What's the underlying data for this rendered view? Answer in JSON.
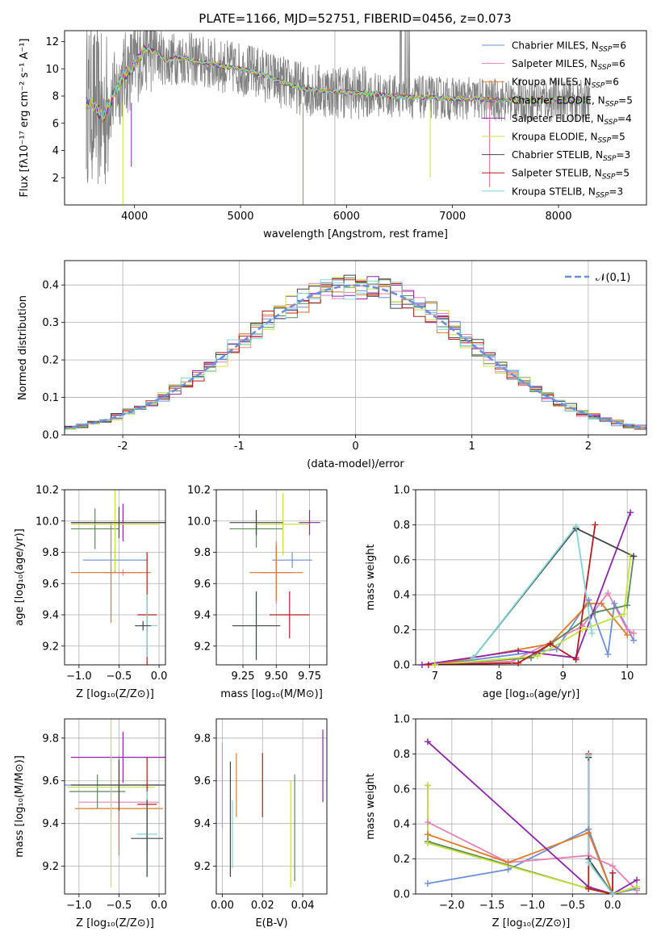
{
  "title": "PLATE=1166, MJD=52751, FIBERID=0456, z=0.073",
  "series_colors": [
    "#6a8fdc",
    "#e681b4",
    "#e07a25",
    "#5a8a5a",
    "#8e24aa",
    "#c8e23c",
    "#444444",
    "#b71c1c",
    "#7fd6d6"
  ],
  "chart_data": [
    {
      "type": "line",
      "id": "spectrum",
      "xlabel": "wavelength [Angstrom, rest frame]",
      "ylabel": "Flux [fλ10⁻¹⁷ erg cm⁻² s⁻¹ A⁻¹]",
      "xlim": [
        3340,
        8830
      ],
      "ylim": [
        0,
        12.8
      ],
      "xticks": [
        4000,
        5000,
        6000,
        7000,
        8000
      ],
      "yticks": [
        2,
        4,
        6,
        8,
        10,
        12
      ],
      "grid": false,
      "legend_position": "top-right",
      "legend": [
        {
          "label": "Chabrier MILES, N",
          "sub": "SSP",
          "eq": "=6"
        },
        {
          "label": "Salpeter MILES, N",
          "sub": "SSP",
          "eq": "=6"
        },
        {
          "label": "Kroupa MILES, N",
          "sub": "SSP",
          "eq": "=6"
        },
        {
          "label": "Chabrier ELODIE, N",
          "sub": "SSP",
          "eq": "=5"
        },
        {
          "label": "Salpeter ELODIE, N",
          "sub": "SSP",
          "eq": "=4"
        },
        {
          "label": "Kroupa ELODIE, N",
          "sub": "SSP",
          "eq": "=5"
        },
        {
          "label": "Chabrier STELIB, N",
          "sub": "SSP",
          "eq": "=3"
        },
        {
          "label": "Salpeter STELIB, N",
          "sub": "SSP",
          "eq": "=5"
        },
        {
          "label": "Kroupa STELIB, N",
          "sub": "SSP",
          "eq": "=3"
        }
      ],
      "continuum": {
        "x": [
          3600,
          3700,
          3800,
          3900,
          4000,
          4100,
          4200,
          4300,
          4400,
          4500,
          4600,
          4700,
          4800,
          4900,
          5000,
          5200,
          5400,
          5600,
          5800,
          6000,
          6200,
          6400,
          6600,
          6800,
          7000,
          7200,
          7400,
          7600,
          7800,
          8000,
          8200
        ],
        "y": [
          7.5,
          6.5,
          8.0,
          9.5,
          10.3,
          11.5,
          11.2,
          10.6,
          10.8,
          10.8,
          10.5,
          10.4,
          10.2,
          10.1,
          10.0,
          9.6,
          9.0,
          8.5,
          8.4,
          8.3,
          8.2,
          8.0,
          7.9,
          7.9,
          7.8,
          7.8,
          7.7,
          7.7,
          7.7,
          7.7,
          7.6
        ]
      }
    },
    {
      "type": "line",
      "id": "residuals",
      "xlabel": "(data-model)/error",
      "ylabel": "Normed distribution",
      "xlim": [
        -2.5,
        2.5
      ],
      "ylim": [
        0,
        0.465
      ],
      "xticks": [
        -2,
        -1,
        0,
        1,
        2
      ],
      "yticks": [
        0.0,
        0.1,
        0.2,
        0.3,
        0.4
      ],
      "grid": true,
      "legend_position": "top-right",
      "legend": [
        "𝒩(0,1)"
      ],
      "reference_curve": {
        "mean": 0,
        "sigma": 1
      },
      "histogram_bin_width": 0.1
    },
    {
      "type": "scatter",
      "id": "age-vs-Z",
      "xlabel": "Z [log₁₀(Z/Z⊙)]",
      "ylabel": "age  [log₁₀(age/yr)]",
      "xlim": [
        -1.18,
        0.08
      ],
      "ylim": [
        9.08,
        10.2
      ],
      "xticks": [
        -1.0,
        -0.5,
        0.0
      ],
      "xticklabels": [
        "−1.0",
        "−0.5",
        "0.0"
      ],
      "yticks": [
        9.2,
        9.4,
        9.6,
        9.8,
        10.0,
        10.2
      ],
      "grid": true,
      "points": [
        {
          "x": -0.55,
          "xerr": 0.4,
          "y": 9.75,
          "yerr": 0.08,
          "c": 0
        },
        {
          "x": -0.45,
          "xerr": 0.25,
          "y": 9.67,
          "yerr": 0.02,
          "c": 1
        },
        {
          "x": -0.6,
          "xerr": 0.5,
          "y": 9.67,
          "yerr": 0.32,
          "c": 2
        },
        {
          "x": -0.8,
          "xerr": 0.3,
          "y": 9.95,
          "yerr": 0.13,
          "c": 3
        },
        {
          "x": -0.45,
          "xerr": 0.65,
          "y": 9.99,
          "yerr": 0.12,
          "c": 4
        },
        {
          "x": -0.55,
          "xerr": 0.55,
          "y": 9.98,
          "yerr": 0.3,
          "c": 5
        },
        {
          "x": -0.5,
          "xerr": 0.6,
          "y": 9.99,
          "yerr": 0.1,
          "c": 6
        },
        {
          "x": -0.15,
          "xerr": 0.12,
          "y": 9.4,
          "yerr": 0.4,
          "c": 7
        },
        {
          "x": -0.15,
          "xerr": 0.13,
          "y": 9.33,
          "yerr": 0.2,
          "c": 8
        },
        {
          "x": -0.2,
          "xerr": 0.1,
          "y": 9.33,
          "yerr": 0.03,
          "c": 6
        }
      ]
    },
    {
      "type": "scatter",
      "id": "age-vs-mass",
      "xlabel": "mass [log₁₀(M/M⊙)]",
      "ylabel": "",
      "xlim": [
        9.05,
        9.88
      ],
      "ylim": [
        9.08,
        10.2
      ],
      "xticks": [
        9.25,
        9.5,
        9.75
      ],
      "xticklabels": [
        "9.25",
        "9.50",
        "9.75"
      ],
      "yticks": [
        9.2,
        9.4,
        9.6,
        9.8,
        10.0,
        10.2
      ],
      "grid": true,
      "points": [
        {
          "x": 9.62,
          "xerr": 0.15,
          "y": 9.75,
          "yerr": 0.05,
          "c": 0
        },
        {
          "x": 9.5,
          "xerr": 0.12,
          "y": 9.67,
          "yerr": 0.2,
          "c": 1
        },
        {
          "x": 9.5,
          "xerr": 0.2,
          "y": 9.67,
          "yerr": 0.18,
          "c": 2
        },
        {
          "x": 9.35,
          "xerr": 0.2,
          "y": 9.95,
          "yerr": 0.12,
          "c": 3
        },
        {
          "x": 9.75,
          "xerr": 0.08,
          "y": 9.99,
          "yerr": 0.08,
          "c": 4
        },
        {
          "x": 9.55,
          "xerr": 0.2,
          "y": 9.98,
          "yerr": 0.2,
          "c": 5
        },
        {
          "x": 9.35,
          "xerr": 0.2,
          "y": 9.99,
          "yerr": 0.08,
          "c": 6
        },
        {
          "x": 9.6,
          "xerr": 0.15,
          "y": 9.4,
          "yerr": 0.15,
          "c": 7
        },
        {
          "x": 9.35,
          "xerr": 0.15,
          "y": 9.33,
          "yerr": 0.2,
          "c": 8
        },
        {
          "x": 9.35,
          "xerr": 0.18,
          "y": 9.33,
          "yerr": 0.22,
          "c": 6
        }
      ]
    },
    {
      "type": "line",
      "id": "massweight-vs-age",
      "xlabel": "age  [log₁₀(age/yr)]",
      "ylabel": "mass weight",
      "xlim": [
        6.7,
        10.3
      ],
      "ylim": [
        0,
        1.0
      ],
      "xticks": [
        7,
        8,
        9,
        10
      ],
      "yticks": [
        0.0,
        0.2,
        0.4,
        0.6,
        0.8,
        1.0
      ],
      "grid": true,
      "series": [
        {
          "c": 0,
          "x": [
            7.0,
            8.9,
            9.4,
            9.7,
            9.8,
            10.1
          ],
          "y": [
            0.0,
            0.09,
            0.37,
            0.06,
            0.35,
            0.14
          ]
        },
        {
          "c": 1,
          "x": [
            7.0,
            8.2,
            9.3,
            9.7,
            10.0,
            10.1
          ],
          "y": [
            0.0,
            0.02,
            0.22,
            0.41,
            0.2,
            0.18
          ]
        },
        {
          "c": 2,
          "x": [
            7.0,
            8.8,
            9.4,
            9.6,
            10.0
          ],
          "y": [
            0.0,
            0.12,
            0.35,
            0.35,
            0.17
          ]
        },
        {
          "c": 3,
          "x": [
            7.0,
            8.5,
            9.5,
            10.0,
            10.1
          ],
          "y": [
            0.0,
            0.04,
            0.3,
            0.34,
            0.62
          ]
        },
        {
          "c": 4,
          "x": [
            6.8,
            8.3,
            9.2,
            10.05
          ],
          "y": [
            0.0,
            0.08,
            0.04,
            0.87
          ]
        },
        {
          "c": 5,
          "x": [
            7.0,
            8.6,
            9.3,
            9.95,
            10.05
          ],
          "y": [
            0.0,
            0.05,
            0.2,
            0.29,
            0.62
          ]
        },
        {
          "c": 6,
          "x": [
            7.6,
            9.2,
            10.1
          ],
          "y": [
            0.04,
            0.78,
            0.62
          ]
        },
        {
          "c": 7,
          "x": [
            6.9,
            8.3,
            8.8,
            9.2,
            9.5
          ],
          "y": [
            0.0,
            0.01,
            0.12,
            0.03,
            0.8
          ]
        },
        {
          "c": 8,
          "x": [
            7.6,
            9.2,
            9.45
          ],
          "y": [
            0.04,
            0.79,
            0.18
          ]
        }
      ]
    },
    {
      "type": "scatter",
      "id": "mass-vs-Z",
      "xlabel": "Z [log₁₀(Z/Z⊙)]",
      "ylabel": "mass [log₁₀(M/M⊙)]",
      "xlim": [
        -1.18,
        0.08
      ],
      "ylim": [
        9.07,
        9.89
      ],
      "xticks": [
        -1.0,
        -0.5,
        0.0
      ],
      "xticklabels": [
        "−1.0",
        "−0.5",
        "0.0"
      ],
      "yticks": [
        9.2,
        9.4,
        9.6,
        9.8
      ],
      "grid": true,
      "points": [
        {
          "x": -0.6,
          "xerr": 0.6,
          "y": 9.58,
          "yerr": 0.15,
          "c": 0
        },
        {
          "x": -0.5,
          "xerr": 0.5,
          "y": 9.5,
          "yerr": 0.22,
          "c": 1
        },
        {
          "x": -0.5,
          "xerr": 0.55,
          "y": 9.47,
          "yerr": 0.22,
          "c": 2
        },
        {
          "x": -0.77,
          "xerr": 0.35,
          "y": 9.55,
          "yerr": 0.08,
          "c": 3
        },
        {
          "x": -0.45,
          "xerr": 0.65,
          "y": 9.71,
          "yerr": 0.12,
          "c": 4
        },
        {
          "x": -0.6,
          "xerr": 0.55,
          "y": 9.57,
          "yerr": 0.47,
          "c": 5
        },
        {
          "x": -0.5,
          "xerr": 0.6,
          "y": 9.58,
          "yerr": 0.12,
          "c": 6
        },
        {
          "x": -0.15,
          "xerr": 0.12,
          "y": 9.49,
          "yerr": 0.22,
          "c": 7
        },
        {
          "x": -0.15,
          "xerr": 0.13,
          "y": 9.35,
          "yerr": 0.2,
          "c": 8
        },
        {
          "x": -0.15,
          "xerr": 0.2,
          "y": 9.33,
          "yerr": 0.18,
          "c": 6
        }
      ]
    },
    {
      "type": "scatter",
      "id": "mass-vs-EBV",
      "xlabel": "E(B-V)",
      "ylabel": "",
      "xlim": [
        -0.003,
        0.052
      ],
      "ylim": [
        9.07,
        9.89
      ],
      "xticks": [
        0.0,
        0.02,
        0.04
      ],
      "xticklabels": [
        "0.00",
        "0.02",
        "0.04"
      ],
      "yticks": [
        9.2,
        9.4,
        9.6,
        9.8
      ],
      "grid": true,
      "points": [
        {
          "x": 0.0,
          "y": 9.58,
          "yerr": 0.2,
          "c": 1
        },
        {
          "x": 0.004,
          "y": 9.42,
          "yerr": 0.27,
          "c": 6
        },
        {
          "x": 0.005,
          "y": 9.35,
          "yerr": 0.16,
          "c": 8
        },
        {
          "x": 0.007,
          "y": 9.58,
          "yerr": 0.15,
          "c": 2
        },
        {
          "x": 0.02,
          "y": 9.58,
          "yerr": 0.15,
          "c": 7
        },
        {
          "x": 0.034,
          "y": 9.35,
          "yerr": 0.25,
          "c": 5
        },
        {
          "x": 0.036,
          "y": 9.38,
          "yerr": 0.25,
          "c": 3
        },
        {
          "x": 0.05,
          "y": 9.67,
          "yerr": 0.17,
          "c": 4
        }
      ]
    },
    {
      "type": "line",
      "id": "massweight-vs-Z",
      "xlabel": "Z [log₁₀(Z/Z⊙)]",
      "ylabel": "mass weight",
      "xlim": [
        -2.45,
        0.42
      ],
      "ylim": [
        0,
        1.0
      ],
      "xticks": [
        -2.0,
        -1.5,
        -1.0,
        -0.5,
        0.0
      ],
      "xticklabels": [
        "−2.0",
        "−1.5",
        "−1.0",
        "−0.5",
        "0.0"
      ],
      "yticks": [
        0.0,
        0.2,
        0.4,
        0.6,
        0.8,
        1.0
      ],
      "grid": true,
      "series": [
        {
          "c": 0,
          "x": [
            -2.3,
            -1.3,
            -0.3,
            0.0,
            0.3
          ],
          "y": [
            0.06,
            0.14,
            0.37,
            0.0,
            0.03
          ]
        },
        {
          "c": 1,
          "x": [
            -2.3,
            -1.3,
            -0.3,
            0.0,
            0.3
          ],
          "y": [
            0.41,
            0.18,
            0.22,
            0.16,
            0.02
          ]
        },
        {
          "c": 2,
          "x": [
            -2.3,
            -1.3,
            -0.3,
            0.0,
            0.3
          ],
          "y": [
            0.34,
            0.18,
            0.35,
            0.0,
            0.04
          ]
        },
        {
          "c": 3,
          "x": [
            -2.3,
            -2.3,
            -0.3,
            0.0,
            0.3
          ],
          "y": [
            0.62,
            0.3,
            0.03,
            0.0,
            0.04
          ]
        },
        {
          "c": 4,
          "x": [
            -2.3,
            -0.3,
            0.0,
            0.3
          ],
          "y": [
            0.87,
            0.04,
            0.0,
            0.08
          ]
        },
        {
          "c": 5,
          "x": [
            -2.3,
            -2.3,
            -0.3,
            0.0,
            0.3
          ],
          "y": [
            0.62,
            0.29,
            0.03,
            0.0,
            0.04
          ]
        },
        {
          "c": 6,
          "x": [
            -0.3,
            -0.3,
            0.0
          ],
          "y": [
            0.78,
            0.2,
            0.0
          ]
        },
        {
          "c": 7,
          "x": [
            -0.3,
            -0.3,
            0.0,
            0.0
          ],
          "y": [
            0.8,
            0.03,
            0.0,
            0.12
          ]
        },
        {
          "c": 8,
          "x": [
            -0.3,
            -0.3,
            0.0
          ],
          "y": [
            0.79,
            0.18,
            0.0
          ]
        }
      ]
    }
  ]
}
